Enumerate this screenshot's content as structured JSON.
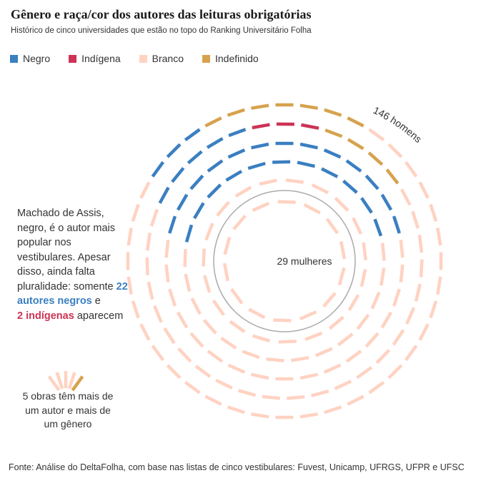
{
  "title": "Gênero e raça/cor dos autores das leituras obrigatórias",
  "subtitle": "Histórico de cinco universidades que estão no topo do Ranking Universitário Folha",
  "legend": [
    {
      "label": "Negro",
      "color": "#3a7fc1"
    },
    {
      "label": "Indígena",
      "color": "#cc3355"
    },
    {
      "label": "Branco",
      "color": "#ffd2c2"
    },
    {
      "label": "Indefinido",
      "color": "#d6a24e"
    }
  ],
  "annotation": {
    "pre": "Machado de Assis, negro, é o autor mais popular nos vestibulares. Apesar disso, ainda falta pluralidade: somente",
    "black_count": "22 autores negros",
    "mid": "e",
    "indigenous_count": "2 indígenas",
    "post": "aparecem"
  },
  "multi_note": "5 obras têm mais de um autor e mais de um gênero",
  "source": "Fonte: Análise do DeltaFolha, com base nas listas de cinco vestibulares: Fuvest, Unicamp, UFRGS, UFPR e UFSC",
  "chart_data": {
    "type": "unit-ring",
    "groups": [
      {
        "label": "146 homens",
        "count": 146,
        "ring": "outer"
      },
      {
        "label": "29 mulheres",
        "count": 29,
        "ring": "inner"
      }
    ],
    "multi_gender_works": 5,
    "categories": [
      "Negro",
      "Indígena",
      "Branco",
      "Indefinido"
    ],
    "composition": {
      "Negro": 22,
      "Indígena": 2,
      "Indefinido": 5
    }
  }
}
